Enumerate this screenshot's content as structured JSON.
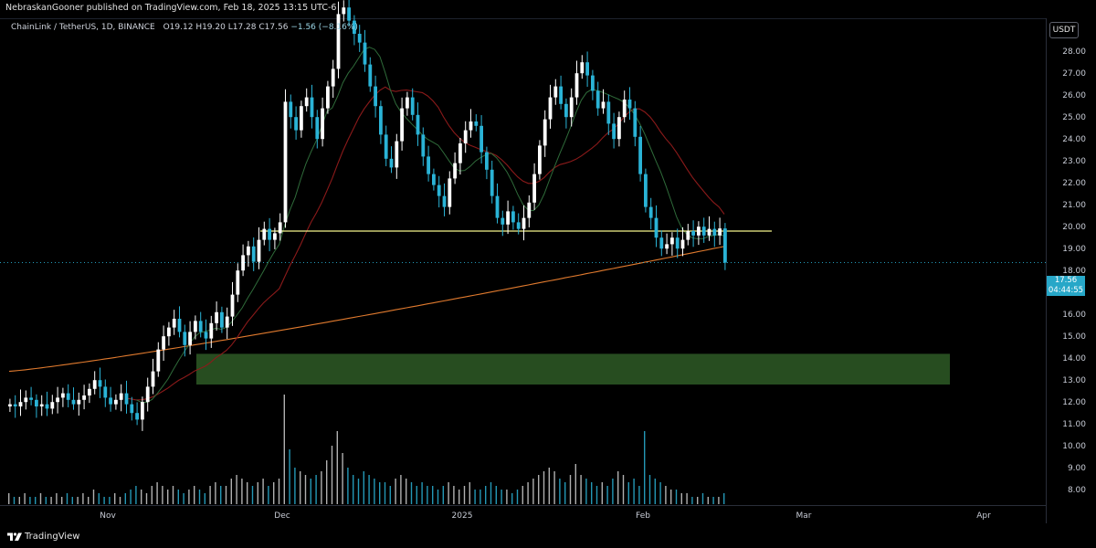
{
  "header": {
    "publisher_text": "NebraskanGooner published on TradingView.com, Feb 18, 2025 13:15 UTC-6"
  },
  "legend": {
    "symbol": "ChainLink / TetherUS, 1D, BINANCE",
    "open": "O19.12",
    "high": "H19.20",
    "low": "L17.28",
    "close": "C17.56",
    "change": "−1.56 (−8.16%)"
  },
  "price_axis": {
    "currency": "USDT",
    "ticks": [
      "28.00",
      "27.00",
      "26.00",
      "25.00",
      "24.00",
      "23.00",
      "22.00",
      "21.00",
      "20.00",
      "19.00",
      "18.00",
      "16.00",
      "15.00",
      "14.00",
      "13.00",
      "12.00",
      "11.00",
      "10.00",
      "9.00",
      "8.00"
    ],
    "last_price": "17.56",
    "countdown": "04:44:55"
  },
  "time_axis": {
    "ticks": [
      "Nov",
      "Dec",
      "2025",
      "Feb",
      "Mar",
      "Apr"
    ]
  },
  "footer": {
    "brand": "TradingView"
  },
  "colors": {
    "up_candle": "#ffffff",
    "down_candle": "#2ab3d6",
    "support_line": "#f2f28b",
    "demand_zone": "#2e5a26",
    "ma_short": "#2f6b3a",
    "ma_mid": "#8b1a1a",
    "ma_long": "#e07a2e"
  },
  "chart_data": {
    "type": "candlestick",
    "symbol": "ChainLink / TetherUS",
    "interval": "1D",
    "exchange": "BINANCE",
    "y_range": [
      7.6,
      29
    ],
    "support_level": 19.0,
    "demand_zone": [
      12.0,
      13.4
    ],
    "last": {
      "open": 19.12,
      "high": 19.2,
      "low": 17.28,
      "close": 17.56
    },
    "price_path": [
      11.1,
      11.0,
      11.2,
      11.4,
      11.3,
      11.0,
      11.1,
      10.9,
      11.2,
      11.4,
      11.6,
      11.3,
      11.1,
      11.3,
      11.5,
      11.8,
      12.2,
      11.9,
      11.4,
      11.1,
      11.3,
      11.6,
      11.1,
      10.7,
      10.4,
      11.2,
      11.9,
      12.6,
      13.6,
      14.2,
      14.6,
      15.0,
      14.4,
      13.8,
      14.4,
      14.9,
      14.4,
      14.1,
      14.8,
      15.3,
      14.6,
      15.1,
      16.1,
      17.2,
      17.9,
      18.3,
      17.6,
      18.6,
      19.1,
      18.6,
      18.9,
      19.4,
      24.9,
      24.2,
      23.6,
      24.7,
      25.1,
      24.2,
      23.2,
      24.6,
      25.6,
      26.4,
      28.9,
      29.2,
      28.6,
      28.0,
      27.6,
      26.6,
      25.6,
      24.7,
      23.4,
      22.3,
      21.9,
      23.1,
      24.6,
      25.1,
      24.3,
      23.4,
      22.4,
      21.6,
      21.1,
      20.6,
      20.1,
      21.4,
      22.1,
      23.0,
      23.6,
      24.0,
      23.8,
      22.6,
      21.8,
      20.6,
      19.6,
      19.3,
      19.9,
      19.4,
      19.1,
      19.6,
      20.3,
      21.6,
      22.9,
      24.1,
      25.1,
      25.6,
      24.8,
      24.2,
      25.1,
      26.2,
      26.7,
      26.1,
      25.4,
      24.6,
      24.9,
      23.9,
      23.2,
      24.2,
      25.0,
      24.6,
      23.3,
      21.6,
      20.1,
      19.6,
      18.7,
      18.2,
      18.4,
      18.7,
      18.2,
      18.6,
      19.0,
      18.8,
      19.2,
      18.8,
      19.1,
      18.8,
      19.12,
      17.56
    ],
    "volume_path": [
      3,
      2,
      2,
      3,
      2,
      2,
      3,
      2,
      2,
      3,
      2,
      3,
      2,
      2,
      3,
      2,
      4,
      3,
      2,
      2,
      3,
      2,
      3,
      4,
      5,
      4,
      3,
      5,
      6,
      5,
      4,
      5,
      4,
      3,
      4,
      5,
      4,
      3,
      5,
      6,
      5,
      5,
      7,
      8,
      7,
      6,
      5,
      6,
      7,
      5,
      6,
      7,
      30,
      15,
      10,
      9,
      8,
      7,
      8,
      9,
      12,
      16,
      20,
      14,
      10,
      8,
      7,
      9,
      8,
      7,
      6,
      6,
      5,
      7,
      8,
      7,
      6,
      5,
      6,
      5,
      5,
      4,
      5,
      6,
      5,
      4,
      5,
      6,
      4,
      4,
      5,
      6,
      5,
      4,
      4,
      3,
      4,
      5,
      6,
      7,
      8,
      9,
      10,
      9,
      7,
      6,
      8,
      11,
      8,
      7,
      6,
      5,
      6,
      5,
      7,
      9,
      8,
      6,
      7,
      5,
      20,
      8,
      7,
      6,
      5,
      4,
      4,
      3,
      3,
      2,
      2,
      3,
      2,
      2,
      2,
      3
    ]
  }
}
